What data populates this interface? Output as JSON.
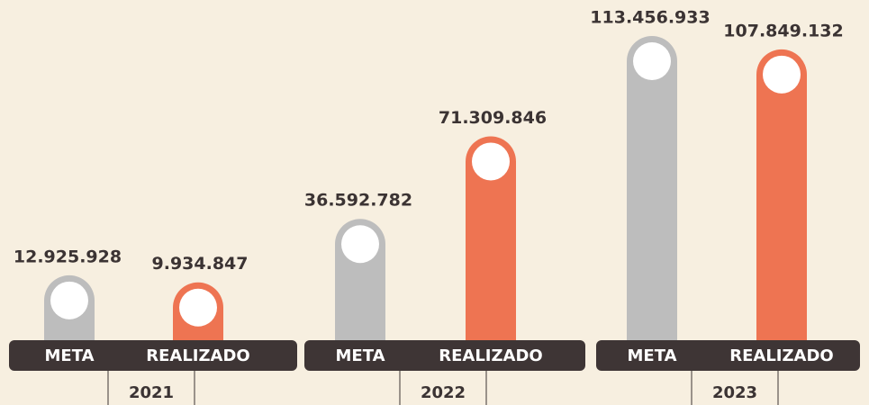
{
  "chart_data": {
    "type": "bar",
    "categories": [
      "2021",
      "2022",
      "2023"
    ],
    "series": [
      {
        "name": "META",
        "color": "#bdbdbd",
        "values": [
          12925928,
          36592782,
          113456933
        ],
        "value_labels": [
          "12.925.928",
          "36.592.782",
          "113.456.933"
        ]
      },
      {
        "name": "REALIZADO",
        "color": "#ee7452",
        "values": [
          9934847,
          71309846,
          107849132
        ],
        "value_labels": [
          "9.934.847",
          "71.309.846",
          "107.849.132"
        ]
      }
    ]
  }
}
